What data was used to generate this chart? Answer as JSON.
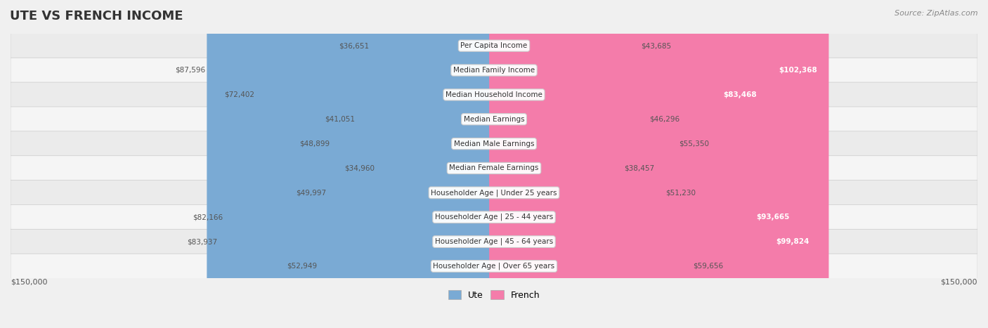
{
  "title": "UTE VS FRENCH INCOME",
  "source": "Source: ZipAtlas.com",
  "categories": [
    "Per Capita Income",
    "Median Family Income",
    "Median Household Income",
    "Median Earnings",
    "Median Male Earnings",
    "Median Female Earnings",
    "Householder Age | Under 25 years",
    "Householder Age | 25 - 44 years",
    "Householder Age | 45 - 64 years",
    "Householder Age | Over 65 years"
  ],
  "ute_values": [
    36651,
    87596,
    72402,
    41051,
    48899,
    34960,
    49997,
    82166,
    83937,
    52949
  ],
  "french_values": [
    43685,
    102368,
    83468,
    46296,
    55350,
    38457,
    51230,
    93665,
    99824,
    59656
  ],
  "ute_labels": [
    "$36,651",
    "$87,596",
    "$72,402",
    "$41,051",
    "$48,899",
    "$34,960",
    "$49,997",
    "$82,166",
    "$83,937",
    "$52,949"
  ],
  "french_labels": [
    "$43,685",
    "$102,368",
    "$83,468",
    "$46,296",
    "$55,350",
    "$38,457",
    "$51,230",
    "$93,665",
    "$99,824",
    "$59,656"
  ],
  "ute_color": "#7aaad4",
  "french_color": "#f47caa",
  "ute_color_strong": "#5b8ec4",
  "french_color_strong": "#f05a90",
  "max_val": 150000,
  "bg_color": "#f0f0f0",
  "row_bg": "#f7f7f7",
  "row_bg_alt": "#efefef",
  "label_color_dark": "#555555",
  "label_color_white": "#ffffff",
  "axis_label_left": "$150,000",
  "axis_label_right": "$150,000"
}
